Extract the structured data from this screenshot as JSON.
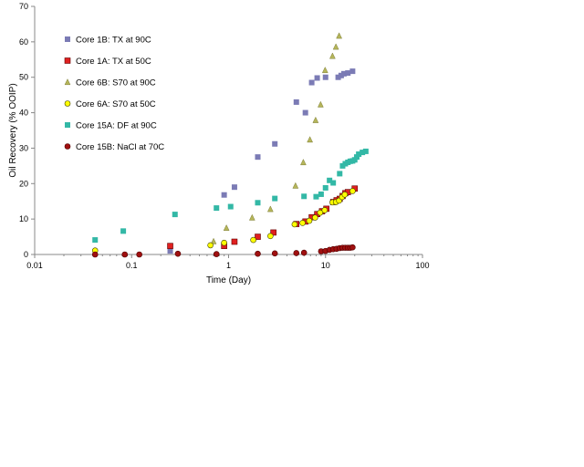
{
  "chart_data": {
    "type": "scatter",
    "xlabel": "Time (Day)",
    "ylabel": "Oil Recovery (% OOIP)",
    "xscale": "log",
    "xlim": [
      0.01,
      100
    ],
    "ylim": [
      0,
      70
    ],
    "x_ticks": [
      "0.01",
      "0.1",
      "1",
      "10",
      "100"
    ],
    "y_ticks": [
      "0",
      "10",
      "20",
      "30",
      "40",
      "50",
      "60",
      "70"
    ],
    "grid": false,
    "legend_position": "top-left",
    "series": [
      {
        "name": "Core 1B: TX at 90C",
        "marker": "square",
        "color": "#7b7bb5",
        "points": [
          [
            0.25,
            1.0
          ],
          [
            0.9,
            16.8
          ],
          [
            1.15,
            19.0
          ],
          [
            2.0,
            27.5
          ],
          [
            3.0,
            31.2
          ],
          [
            5.0,
            43.0
          ],
          [
            6.2,
            40.0
          ],
          [
            7.2,
            48.5
          ],
          [
            8.2,
            49.8
          ],
          [
            10.0,
            50.0
          ],
          [
            13.5,
            50.0
          ],
          [
            14.5,
            50.5
          ],
          [
            15.5,
            51.0
          ],
          [
            17.0,
            51.2
          ],
          [
            19.0,
            51.7
          ]
        ]
      },
      {
        "name": "Core 1A: TX at 50C",
        "marker": "square",
        "color": "#e02020",
        "points": [
          [
            0.25,
            2.4
          ],
          [
            0.9,
            2.4
          ],
          [
            1.15,
            3.6
          ],
          [
            2.0,
            5.0
          ],
          [
            2.9,
            6.2
          ],
          [
            5.0,
            8.6
          ],
          [
            6.2,
            9.3
          ],
          [
            7.2,
            10.5
          ],
          [
            8.2,
            11.4
          ],
          [
            9.2,
            12.2
          ],
          [
            10.2,
            12.9
          ],
          [
            12.0,
            14.8
          ],
          [
            13.0,
            15.3
          ],
          [
            14.0,
            15.7
          ],
          [
            15.0,
            16.5
          ],
          [
            16.0,
            17.3
          ],
          [
            17.0,
            17.6
          ],
          [
            20.0,
            18.6
          ]
        ]
      },
      {
        "name": "Core 6B: S70 at 90C",
        "marker": "triangle",
        "color": "#b5b55a",
        "points": [
          [
            0.7,
            3.7
          ],
          [
            0.95,
            7.5
          ],
          [
            1.75,
            10.4
          ],
          [
            2.7,
            12.8
          ],
          [
            4.9,
            19.4
          ],
          [
            5.9,
            26.0
          ],
          [
            6.9,
            32.4
          ],
          [
            7.9,
            37.9
          ],
          [
            8.9,
            42.3
          ],
          [
            9.9,
            52.0
          ],
          [
            11.8,
            56.0
          ],
          [
            12.8,
            58.6
          ],
          [
            13.8,
            61.7
          ]
        ]
      },
      {
        "name": "Core 6A: S70 at 50C",
        "marker": "circle",
        "color": "#ffff00",
        "points": [
          [
            0.042,
            1.1
          ],
          [
            0.65,
            2.6
          ],
          [
            0.9,
            3.3
          ],
          [
            1.8,
            4.1
          ],
          [
            2.7,
            5.2
          ],
          [
            4.8,
            8.5
          ],
          [
            5.8,
            8.9
          ],
          [
            6.8,
            9.5
          ],
          [
            7.8,
            10.4
          ],
          [
            8.8,
            11.8
          ],
          [
            9.8,
            12.5
          ],
          [
            11.8,
            14.7
          ],
          [
            12.8,
            14.8
          ],
          [
            13.8,
            15.2
          ],
          [
            14.8,
            16.2
          ],
          [
            15.8,
            16.9
          ],
          [
            19.0,
            17.9
          ]
        ]
      },
      {
        "name": "Core 15A: DF at 90C",
        "marker": "square",
        "color": "#33b8a6",
        "points": [
          [
            0.042,
            4.1
          ],
          [
            0.082,
            6.6
          ],
          [
            0.28,
            11.3
          ],
          [
            0.75,
            13.1
          ],
          [
            1.05,
            13.5
          ],
          [
            2.0,
            14.6
          ],
          [
            3.0,
            15.8
          ],
          [
            6.0,
            16.4
          ],
          [
            8.0,
            16.3
          ],
          [
            9.0,
            17.0
          ],
          [
            10.0,
            18.8
          ],
          [
            11.0,
            20.9
          ],
          [
            12.0,
            20.2
          ],
          [
            14.0,
            22.8
          ],
          [
            15.0,
            25.0
          ],
          [
            16.0,
            25.6
          ],
          [
            17.0,
            26.0
          ],
          [
            18.0,
            26.3
          ],
          [
            19.0,
            26.4
          ],
          [
            20.0,
            26.7
          ],
          [
            21.0,
            27.5
          ],
          [
            22.0,
            28.3
          ],
          [
            24.0,
            28.8
          ],
          [
            26.0,
            29.1
          ]
        ]
      },
      {
        "name": "Core 15B: NaCl at 70C",
        "marker": "circle",
        "color": "#a01010",
        "points": [
          [
            0.042,
            0.0
          ],
          [
            0.085,
            0.0
          ],
          [
            0.12,
            0.0
          ],
          [
            0.3,
            0.2
          ],
          [
            0.75,
            0.1
          ],
          [
            2.0,
            0.2
          ],
          [
            3.0,
            0.3
          ],
          [
            5.0,
            0.4
          ],
          [
            6.0,
            0.5
          ],
          [
            9.0,
            0.9
          ],
          [
            10.0,
            1.0
          ],
          [
            11.0,
            1.3
          ],
          [
            12.0,
            1.5
          ],
          [
            13.0,
            1.6
          ],
          [
            14.0,
            1.8
          ],
          [
            15.0,
            1.9
          ],
          [
            16.0,
            1.9
          ],
          [
            17.0,
            1.9
          ],
          [
            18.0,
            1.9
          ],
          [
            19.0,
            2.0
          ]
        ]
      }
    ]
  }
}
